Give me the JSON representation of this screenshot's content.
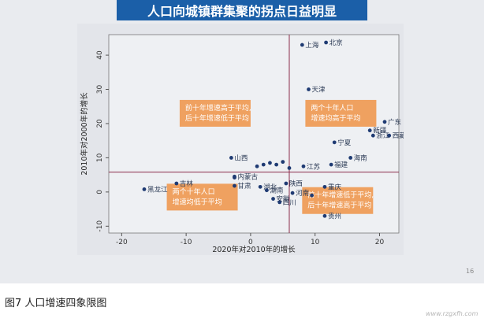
{
  "banner": {
    "title": "人口向城镇群集聚的拐点日益明显"
  },
  "page_number": "16",
  "caption": "图7 人口增速四象限图",
  "watermark": "www.rzgxfh.com",
  "colors": {
    "banner": "#1b5fa8",
    "axis_line": "#8a2b4a",
    "point": "#1f3b73",
    "box": "#ef9a54"
  },
  "chart_data": {
    "type": "scatter",
    "xlabel": "2020年对2010年的增长",
    "ylabel": "2010年对2000年的增长",
    "xlim": [
      -22,
      23
    ],
    "ylim": [
      -12,
      46
    ],
    "xticks": [
      -20,
      -10,
      0,
      10,
      20
    ],
    "yticks": [
      -10,
      0,
      10,
      20,
      30,
      40
    ],
    "grid": false,
    "reference_lines": {
      "x": 6,
      "y": 5.8
    },
    "quadrant_labels": [
      {
        "lines": [
          "前十年增速高于平均,",
          "后十年增速低于平均"
        ],
        "x": -5.5,
        "y": 23
      },
      {
        "lines": [
          "两个十年人口",
          "增速均高于平均"
        ],
        "x": 14,
        "y": 23
      },
      {
        "lines": [
          "两个十年人口",
          "增速均低于平均"
        ],
        "x": -7.5,
        "y": -1.5
      },
      {
        "lines": [
          "前十年增速低于平均,",
          "后十年增速高于平均"
        ],
        "x": 13.5,
        "y": -2.5
      }
    ],
    "points": [
      {
        "label": "上海",
        "x": 8,
        "y": 43
      },
      {
        "label": "北京",
        "x": 11.7,
        "y": 43.7
      },
      {
        "label": "天津",
        "x": 9,
        "y": 30
      },
      {
        "label": "广东",
        "x": 20.8,
        "y": 20.5
      },
      {
        "label": "新疆",
        "x": 18.5,
        "y": 18
      },
      {
        "label": "浙江",
        "x": 19,
        "y": 16.5
      },
      {
        "label": "西藏",
        "x": 21.5,
        "y": 16.5
      },
      {
        "label": "宁夏",
        "x": 13,
        "y": 14.5
      },
      {
        "label": "海南",
        "x": 15.5,
        "y": 10
      },
      {
        "label": "福建",
        "x": 12.5,
        "y": 8
      },
      {
        "label": "山西",
        "x": -3,
        "y": 10
      },
      {
        "label": "江苏",
        "x": 8.2,
        "y": 7.5
      },
      {
        "label": "内蒙古",
        "x": -2.5,
        "y": 4.5
      },
      {
        "label": "吉林",
        "x": -11.5,
        "y": 2.5
      },
      {
        "label": "黑龙江",
        "x": -16.5,
        "y": 0.8
      },
      {
        "label": "甘肃",
        "x": -2.5,
        "y": 1.8
      },
      {
        "label": "湖北",
        "x": 1.5,
        "y": 1.5
      },
      {
        "label": "湖南",
        "x": 2.5,
        "y": 0.5
      },
      {
        "label": "安徽",
        "x": 3.5,
        "y": -2
      },
      {
        "label": "四川",
        "x": 4.5,
        "y": -3
      },
      {
        "label": "陕西",
        "x": 5.5,
        "y": 2.5
      },
      {
        "label": "河南",
        "x": 6.5,
        "y": -0.3
      },
      {
        "label": "重庆",
        "x": 11.5,
        "y": 1.5
      },
      {
        "label": "贵州",
        "x": 11.5,
        "y": -7
      }
    ],
    "unlabeled_points": [
      {
        "x": 1,
        "y": 7.5
      },
      {
        "x": 2,
        "y": 8
      },
      {
        "x": 3,
        "y": 8.5
      },
      {
        "x": 4,
        "y": 8
      },
      {
        "x": 5,
        "y": 8.8
      },
      {
        "x": 6,
        "y": 7
      },
      {
        "x": -2.5,
        "y": 4.2
      },
      {
        "x": 9.5,
        "y": -1
      }
    ]
  }
}
